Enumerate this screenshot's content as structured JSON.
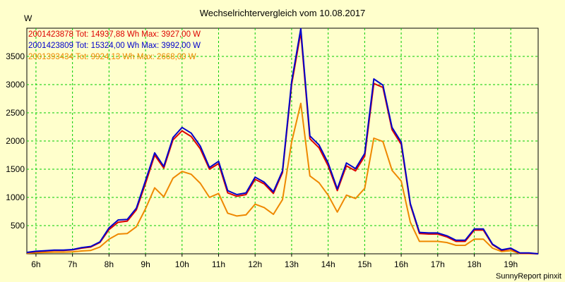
{
  "chart_data": {
    "type": "line",
    "title": "Wechselrichtervergleich vom 10.08.2017",
    "ylabel": "W",
    "xlabel": "",
    "footer": "SunnyReport pinxit",
    "ylim": [
      0,
      4000
    ],
    "yticks": [
      500,
      1000,
      1500,
      2000,
      2500,
      3000,
      3500
    ],
    "xlim": [
      5.75,
      19.75
    ],
    "xticks": [
      6,
      7,
      8,
      9,
      10,
      11,
      12,
      13,
      14,
      15,
      16,
      17,
      18,
      19
    ],
    "xtick_labels": [
      "6h",
      "7h",
      "8h",
      "9h",
      "10h",
      "11h",
      "12h",
      "13h",
      "14h",
      "15h",
      "16h",
      "17h",
      "18h",
      "19h"
    ],
    "grid": true,
    "legend_position": "top-left",
    "x": [
      5.75,
      6.0,
      6.25,
      6.5,
      6.75,
      7.0,
      7.25,
      7.5,
      7.75,
      8.0,
      8.25,
      8.5,
      8.75,
      9.0,
      9.25,
      9.5,
      9.75,
      10.0,
      10.25,
      10.5,
      10.75,
      11.0,
      11.25,
      11.5,
      11.75,
      12.0,
      12.25,
      12.5,
      12.75,
      13.0,
      13.25,
      13.5,
      13.75,
      14.0,
      14.25,
      14.5,
      14.75,
      15.0,
      15.25,
      15.5,
      15.75,
      16.0,
      16.25,
      16.5,
      16.75,
      17.0,
      17.25,
      17.5,
      17.75,
      18.0,
      18.25,
      18.5,
      18.75,
      19.0,
      19.25,
      19.5,
      19.75
    ],
    "series": [
      {
        "name": "2001423878 Tot: 14937,88 Wh Max: 3927,00 W",
        "color": "#dd0000",
        "values": [
          20,
          40,
          50,
          60,
          60,
          70,
          100,
          120,
          200,
          430,
          560,
          580,
          780,
          1250,
          1750,
          1520,
          2020,
          2180,
          2080,
          1860,
          1500,
          1600,
          1080,
          1020,
          1050,
          1320,
          1240,
          1070,
          1440,
          3000,
          3927,
          2040,
          1880,
          1560,
          1120,
          1560,
          1470,
          1730,
          3020,
          2950,
          2200,
          1940,
          870,
          360,
          350,
          350,
          300,
          220,
          220,
          420,
          420,
          160,
          60,
          90,
          10,
          10,
          0
        ]
      },
      {
        "name": "2001423809 Tot: 15324,00 Wh Max: 3992,00 W",
        "color": "#0000cc",
        "values": [
          25,
          45,
          55,
          65,
          65,
          75,
          110,
          130,
          210,
          460,
          600,
          610,
          810,
          1300,
          1790,
          1550,
          2060,
          2240,
          2140,
          1910,
          1530,
          1640,
          1120,
          1050,
          1080,
          1360,
          1270,
          1100,
          1470,
          3050,
          3992,
          2090,
          1930,
          1610,
          1150,
          1610,
          1510,
          1780,
          3100,
          2990,
          2240,
          1980,
          890,
          380,
          370,
          370,
          320,
          240,
          240,
          440,
          440,
          170,
          70,
          100,
          15,
          15,
          0
        ]
      },
      {
        "name": "2001393434 Tot: 9924,13 Wh Max: 2668,00 W",
        "color": "#ee8800",
        "values": [
          10,
          20,
          25,
          30,
          30,
          35,
          50,
          60,
          120,
          260,
          350,
          360,
          480,
          800,
          1170,
          1010,
          1340,
          1460,
          1410,
          1250,
          1000,
          1070,
          720,
          670,
          690,
          880,
          820,
          700,
          960,
          1980,
          2668,
          1380,
          1260,
          1040,
          740,
          1040,
          980,
          1160,
          2050,
          1990,
          1480,
          1290,
          560,
          220,
          220,
          220,
          200,
          150,
          150,
          260,
          260,
          100,
          40,
          55,
          5,
          5,
          0
        ]
      }
    ]
  }
}
